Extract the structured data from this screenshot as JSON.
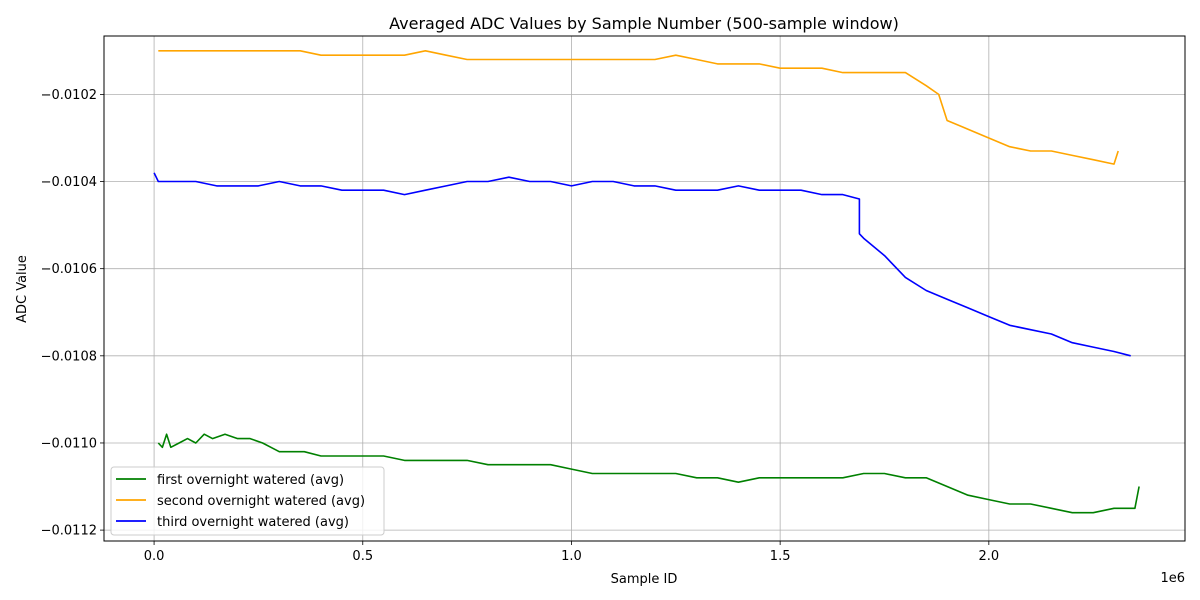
{
  "chart_data": {
    "type": "line",
    "title": "Averaged ADC Values by Sample Number (500-sample window)",
    "xlabel": "Sample ID",
    "ylabel": "ADC Value",
    "x_offset_label": "1e6",
    "xlim": [
      -0.12,
      2.47
    ],
    "ylim": [
      -0.011225,
      -0.010066
    ],
    "x_ticks": [
      0.0,
      0.5,
      1.0,
      1.5,
      2.0
    ],
    "x_tick_labels": [
      "0.0",
      "0.5",
      "1.0",
      "1.5",
      "2.0"
    ],
    "y_ticks": [
      -0.0102,
      -0.0104,
      -0.0106,
      -0.0108,
      -0.011,
      -0.0112
    ],
    "y_tick_labels": [
      "−0.0102",
      "−0.0104",
      "−0.0106",
      "−0.0108",
      "−0.0110",
      "−0.0112"
    ],
    "grid": true,
    "legend_position": "lower-left",
    "series": [
      {
        "name": "first overnight watered (avg)",
        "color": "#008000",
        "points": [
          [
            0.01,
            -0.011
          ],
          [
            0.02,
            -0.01101
          ],
          [
            0.03,
            -0.01098
          ],
          [
            0.04,
            -0.01101
          ],
          [
            0.06,
            -0.011
          ],
          [
            0.08,
            -0.01099
          ],
          [
            0.1,
            -0.011
          ],
          [
            0.12,
            -0.01098
          ],
          [
            0.14,
            -0.01099
          ],
          [
            0.17,
            -0.01098
          ],
          [
            0.2,
            -0.01099
          ],
          [
            0.23,
            -0.01099
          ],
          [
            0.26,
            -0.011
          ],
          [
            0.28,
            -0.01101
          ],
          [
            0.3,
            -0.01102
          ],
          [
            0.33,
            -0.01102
          ],
          [
            0.36,
            -0.01102
          ],
          [
            0.4,
            -0.01103
          ],
          [
            0.45,
            -0.01103
          ],
          [
            0.5,
            -0.01103
          ],
          [
            0.55,
            -0.01103
          ],
          [
            0.6,
            -0.01104
          ],
          [
            0.65,
            -0.01104
          ],
          [
            0.7,
            -0.01104
          ],
          [
            0.75,
            -0.01104
          ],
          [
            0.8,
            -0.01105
          ],
          [
            0.85,
            -0.01105
          ],
          [
            0.9,
            -0.01105
          ],
          [
            0.95,
            -0.01105
          ],
          [
            1.0,
            -0.01106
          ],
          [
            1.05,
            -0.01107
          ],
          [
            1.1,
            -0.01107
          ],
          [
            1.15,
            -0.01107
          ],
          [
            1.2,
            -0.01107
          ],
          [
            1.25,
            -0.01107
          ],
          [
            1.3,
            -0.01108
          ],
          [
            1.35,
            -0.01108
          ],
          [
            1.4,
            -0.01109
          ],
          [
            1.45,
            -0.01108
          ],
          [
            1.5,
            -0.01108
          ],
          [
            1.55,
            -0.01108
          ],
          [
            1.6,
            -0.01108
          ],
          [
            1.65,
            -0.01108
          ],
          [
            1.7,
            -0.01107
          ],
          [
            1.75,
            -0.01107
          ],
          [
            1.8,
            -0.01108
          ],
          [
            1.85,
            -0.01108
          ],
          [
            1.9,
            -0.0111
          ],
          [
            1.95,
            -0.01112
          ],
          [
            2.0,
            -0.01113
          ],
          [
            2.05,
            -0.01114
          ],
          [
            2.1,
            -0.01114
          ],
          [
            2.15,
            -0.01115
          ],
          [
            2.2,
            -0.01116
          ],
          [
            2.25,
            -0.01116
          ],
          [
            2.3,
            -0.01115
          ],
          [
            2.35,
            -0.01115
          ],
          [
            2.36,
            -0.0111
          ]
        ]
      },
      {
        "name": "second overnight watered (avg)",
        "color": "#ffa500",
        "points": [
          [
            0.01,
            -0.0101
          ],
          [
            0.05,
            -0.0101
          ],
          [
            0.1,
            -0.0101
          ],
          [
            0.15,
            -0.0101
          ],
          [
            0.2,
            -0.0101
          ],
          [
            0.25,
            -0.0101
          ],
          [
            0.3,
            -0.0101
          ],
          [
            0.35,
            -0.0101
          ],
          [
            0.4,
            -0.01011
          ],
          [
            0.45,
            -0.01011
          ],
          [
            0.5,
            -0.01011
          ],
          [
            0.55,
            -0.01011
          ],
          [
            0.6,
            -0.01011
          ],
          [
            0.65,
            -0.0101
          ],
          [
            0.7,
            -0.01011
          ],
          [
            0.75,
            -0.01012
          ],
          [
            0.8,
            -0.01012
          ],
          [
            0.85,
            -0.01012
          ],
          [
            0.9,
            -0.01012
          ],
          [
            0.95,
            -0.01012
          ],
          [
            1.0,
            -0.01012
          ],
          [
            1.05,
            -0.01012
          ],
          [
            1.1,
            -0.01012
          ],
          [
            1.15,
            -0.01012
          ],
          [
            1.2,
            -0.01012
          ],
          [
            1.25,
            -0.01011
          ],
          [
            1.3,
            -0.01012
          ],
          [
            1.35,
            -0.01013
          ],
          [
            1.4,
            -0.01013
          ],
          [
            1.45,
            -0.01013
          ],
          [
            1.5,
            -0.01014
          ],
          [
            1.55,
            -0.01014
          ],
          [
            1.6,
            -0.01014
          ],
          [
            1.65,
            -0.01015
          ],
          [
            1.7,
            -0.01015
          ],
          [
            1.75,
            -0.01015
          ],
          [
            1.8,
            -0.01015
          ],
          [
            1.85,
            -0.01018
          ],
          [
            1.88,
            -0.0102
          ],
          [
            1.9,
            -0.01026
          ],
          [
            1.95,
            -0.01028
          ],
          [
            2.0,
            -0.0103
          ],
          [
            2.05,
            -0.01032
          ],
          [
            2.1,
            -0.01033
          ],
          [
            2.15,
            -0.01033
          ],
          [
            2.2,
            -0.01034
          ],
          [
            2.25,
            -0.01035
          ],
          [
            2.3,
            -0.01036
          ],
          [
            2.31,
            -0.01033
          ]
        ]
      },
      {
        "name": "third overnight watered (avg)",
        "color": "#0000ff",
        "points": [
          [
            0.0,
            -0.01038
          ],
          [
            0.01,
            -0.0104
          ],
          [
            0.05,
            -0.0104
          ],
          [
            0.1,
            -0.0104
          ],
          [
            0.15,
            -0.01041
          ],
          [
            0.2,
            -0.01041
          ],
          [
            0.25,
            -0.01041
          ],
          [
            0.3,
            -0.0104
          ],
          [
            0.35,
            -0.01041
          ],
          [
            0.4,
            -0.01041
          ],
          [
            0.45,
            -0.01042
          ],
          [
            0.5,
            -0.01042
          ],
          [
            0.55,
            -0.01042
          ],
          [
            0.6,
            -0.01043
          ],
          [
            0.65,
            -0.01042
          ],
          [
            0.7,
            -0.01041
          ],
          [
            0.75,
            -0.0104
          ],
          [
            0.8,
            -0.0104
          ],
          [
            0.85,
            -0.01039
          ],
          [
            0.9,
            -0.0104
          ],
          [
            0.95,
            -0.0104
          ],
          [
            1.0,
            -0.01041
          ],
          [
            1.05,
            -0.0104
          ],
          [
            1.1,
            -0.0104
          ],
          [
            1.15,
            -0.01041
          ],
          [
            1.2,
            -0.01041
          ],
          [
            1.25,
            -0.01042
          ],
          [
            1.3,
            -0.01042
          ],
          [
            1.35,
            -0.01042
          ],
          [
            1.4,
            -0.01041
          ],
          [
            1.45,
            -0.01042
          ],
          [
            1.5,
            -0.01042
          ],
          [
            1.55,
            -0.01042
          ],
          [
            1.6,
            -0.01043
          ],
          [
            1.65,
            -0.01043
          ],
          [
            1.69,
            -0.01044
          ],
          [
            1.69,
            -0.01052
          ],
          [
            1.7,
            -0.01053
          ],
          [
            1.75,
            -0.01057
          ],
          [
            1.8,
            -0.01062
          ],
          [
            1.85,
            -0.01065
          ],
          [
            1.9,
            -0.01067
          ],
          [
            1.95,
            -0.01069
          ],
          [
            2.0,
            -0.01071
          ],
          [
            2.05,
            -0.01073
          ],
          [
            2.1,
            -0.01074
          ],
          [
            2.15,
            -0.01075
          ],
          [
            2.2,
            -0.01077
          ],
          [
            2.25,
            -0.01078
          ],
          [
            2.3,
            -0.01079
          ],
          [
            2.34,
            -0.0108
          ]
        ]
      }
    ]
  }
}
